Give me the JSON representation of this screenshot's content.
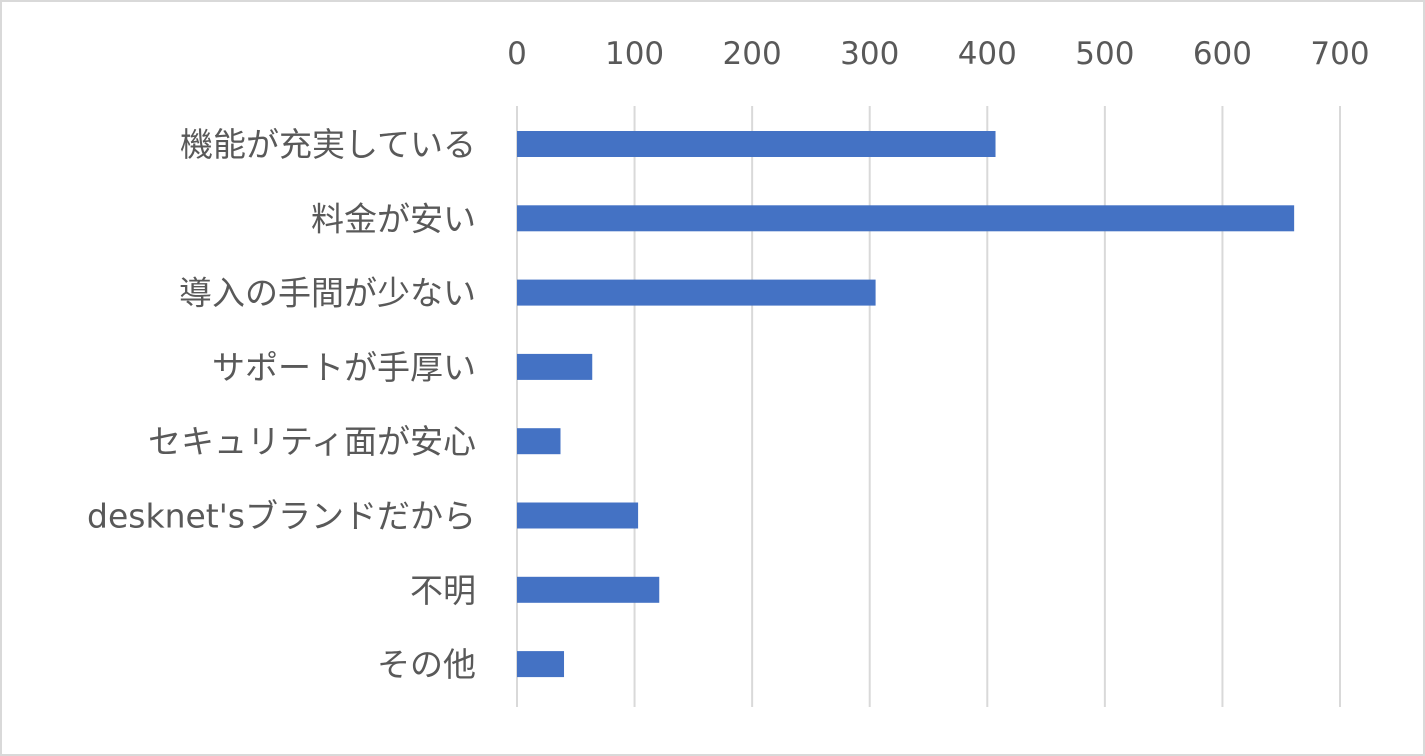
{
  "chart_data": {
    "type": "bar",
    "orientation": "horizontal",
    "title": "",
    "xlabel": "",
    "ylabel": "",
    "xlim": [
      0,
      700
    ],
    "x_ticks": [
      0,
      100,
      200,
      300,
      400,
      500,
      600,
      700
    ],
    "x_tick_labels": [
      "0",
      "100",
      "200",
      "300",
      "400",
      "500",
      "600",
      "700"
    ],
    "x_axis_position": "top",
    "grid": "vertical",
    "legend": "none",
    "categories": [
      "機能が充実している",
      "料金が安い",
      "導入の手間が少ない",
      "サポートが手厚い",
      "セキュリティ面が安心",
      "desknet'sブランドだから",
      "不明",
      "その他"
    ],
    "values": [
      407,
      661,
      305,
      64,
      37,
      103,
      121,
      40
    ],
    "colors": {
      "bar": "#4472c4",
      "grid": "#d9d9d9",
      "text": "#595959",
      "border": "#d9d9d9"
    }
  }
}
